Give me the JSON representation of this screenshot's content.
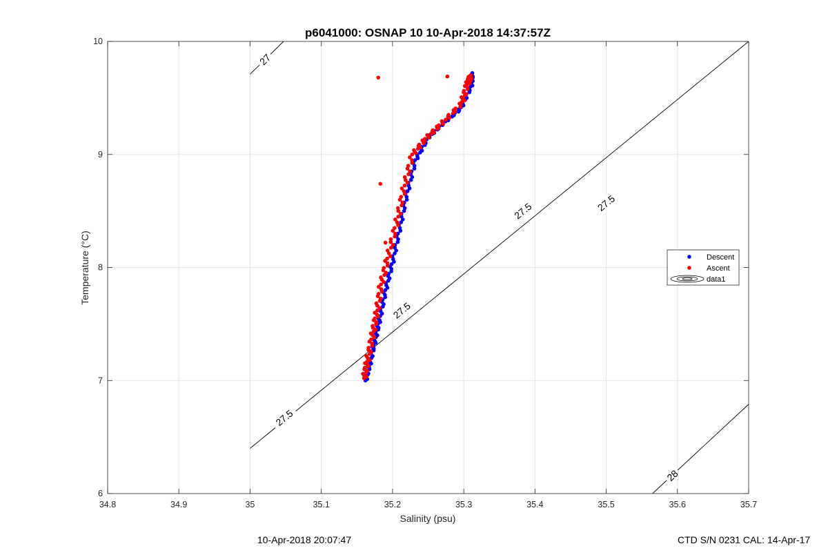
{
  "chart_data": {
    "type": "scatter",
    "title": "p6041000: OSNAP 10 10-Apr-2018 14:37:57Z",
    "xlabel": "Salinity (psu)",
    "ylabel": "Temperature (°C)",
    "xlim": [
      34.8,
      35.7
    ],
    "ylim": [
      6,
      10
    ],
    "xticks": [
      "34.8",
      "34.9",
      "35",
      "35.1",
      "35.2",
      "35.3",
      "35.4",
      "35.5",
      "35.6",
      "35.7"
    ],
    "yticks": [
      "6",
      "7",
      "8",
      "9",
      "10"
    ],
    "grid": true,
    "legend_position": "right",
    "legend": [
      "Descent",
      "Ascent",
      "data1"
    ],
    "colors": {
      "descent": "#0000ff",
      "ascent": "#ff0000",
      "contour": "#000000"
    },
    "series": [
      {
        "name": "Descent",
        "color": "#0000ff",
        "profile": [
          [
            35.162,
            7.0
          ],
          [
            35.168,
            7.15
          ],
          [
            35.175,
            7.35
          ],
          [
            35.182,
            7.55
          ],
          [
            35.19,
            7.8
          ],
          [
            35.2,
            8.05
          ],
          [
            35.21,
            8.35
          ],
          [
            35.22,
            8.65
          ],
          [
            35.232,
            8.95
          ],
          [
            35.25,
            9.15
          ],
          [
            35.27,
            9.27
          ],
          [
            35.295,
            9.4
          ],
          [
            35.31,
            9.6
          ],
          [
            35.312,
            9.72
          ]
        ]
      },
      {
        "name": "Ascent",
        "color": "#ff0000",
        "profile": [
          [
            35.16,
            7.02
          ],
          [
            35.165,
            7.18
          ],
          [
            35.172,
            7.4
          ],
          [
            35.178,
            7.6
          ],
          [
            35.184,
            7.85
          ],
          [
            35.194,
            8.1
          ],
          [
            35.206,
            8.4
          ],
          [
            35.216,
            8.7
          ],
          [
            35.228,
            9.0
          ],
          [
            35.248,
            9.15
          ],
          [
            35.27,
            9.28
          ],
          [
            35.297,
            9.45
          ],
          [
            35.305,
            9.62
          ],
          [
            35.31,
            9.7
          ]
        ],
        "outliers": [
          [
            35.18,
            9.68
          ],
          [
            35.277,
            9.69
          ],
          [
            35.183,
            8.74
          ],
          [
            35.19,
            8.22
          ]
        ]
      }
    ],
    "contours": [
      {
        "label": "27",
        "line": [
          [
            35.0,
            9.71
          ],
          [
            35.047,
            10.0
          ]
        ]
      },
      {
        "label": "27.5",
        "line": [
          [
            35.0,
            6.4
          ],
          [
            35.7,
            10.0
          ]
        ]
      },
      {
        "label": "28",
        "line": [
          [
            35.565,
            6.0
          ],
          [
            35.7,
            6.79
          ]
        ]
      }
    ],
    "contour_labels": [
      {
        "text": "27",
        "at": [
          35.021,
          9.84
        ]
      },
      {
        "text": "27.5",
        "at": [
          35.5,
          8.57
        ]
      },
      {
        "text": "27.5",
        "at": [
          35.383,
          8.5
        ]
      },
      {
        "text": "27.5",
        "at": [
          35.213,
          7.62
        ]
      },
      {
        "text": "27.5",
        "at": [
          35.048,
          6.67
        ]
      },
      {
        "text": "28",
        "at": [
          35.593,
          6.16
        ]
      }
    ]
  },
  "footer": {
    "left": "10-Apr-2018 20:07:47",
    "right": "CTD S/N 0231  CAL: 14-Apr-17"
  }
}
